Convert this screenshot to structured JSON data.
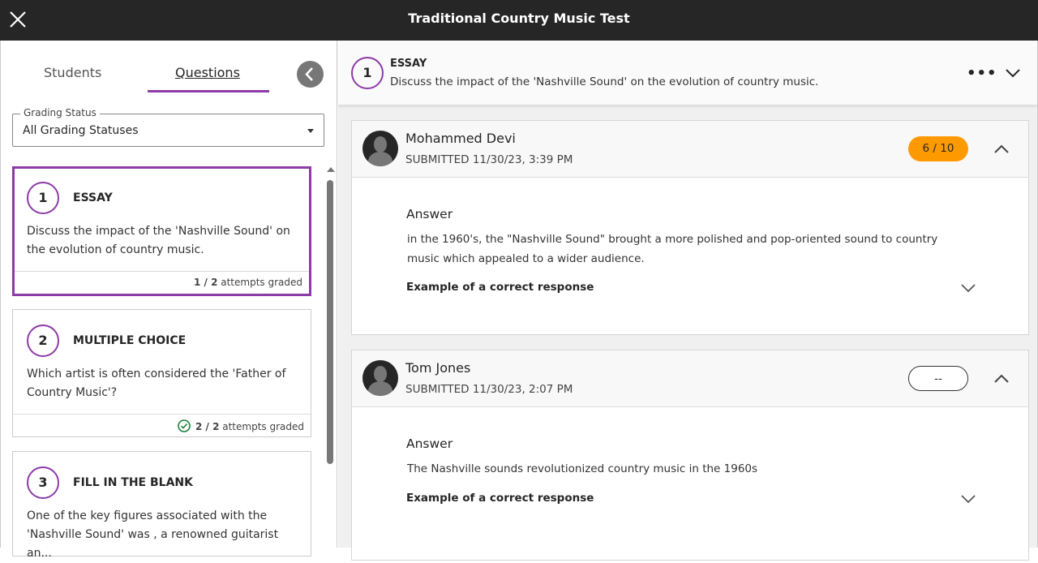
{
  "header": {
    "title": "Traditional Country Music Test"
  },
  "tabs": [
    {
      "label": "Students"
    },
    {
      "label": "Questions"
    }
  ],
  "filter": {
    "label": "Grading Status",
    "value": "All Grading Statuses"
  },
  "questions": [
    {
      "number": "1",
      "type": "ESSAY",
      "text": "Discuss the impact of the 'Nashville Sound' on the evolution of country music.",
      "graded": "1 / 2",
      "graded_suffix": " attempts graded",
      "complete": false
    },
    {
      "number": "2",
      "type": "MULTIPLE CHOICE",
      "text": "Which artist is often considered the 'Father of Country Music'?",
      "graded": "2 / 2",
      "graded_suffix": " attempts graded",
      "complete": true
    },
    {
      "number": "3",
      "type": "FILL IN THE BLANK",
      "text": "One of the key figures associated with the 'Nashville Sound' was , a renowned guitarist an..."
    }
  ],
  "current": {
    "number": "1",
    "type": "ESSAY",
    "text": "Discuss the impact of the 'Nashville Sound' on the evolution of country music."
  },
  "submissions": [
    {
      "name": "Mohammed Devi",
      "submitted": "SUBMITTED 11/30/23, 3:39 PM",
      "grade": "6 / 10",
      "answer_label": "Answer",
      "answer": "in the 1960's, the \"Nashville Sound\" brought a more polished and pop-oriented sound to country music which appealed to a wider audience.",
      "example_label": "Example of a correct response"
    },
    {
      "name": "Tom Jones",
      "submitted": "SUBMITTED 11/30/23, 2:07 PM",
      "grade": "--",
      "answer_label": "Answer",
      "answer": "The Nashville sounds revolutionized country music in the 1960s",
      "example_label": "Example of a correct response"
    }
  ],
  "colors": {
    "accent": "#8c3ba7",
    "grade_badge": "#ff9900",
    "topbar": "#262626",
    "success": "#1a7f37"
  }
}
